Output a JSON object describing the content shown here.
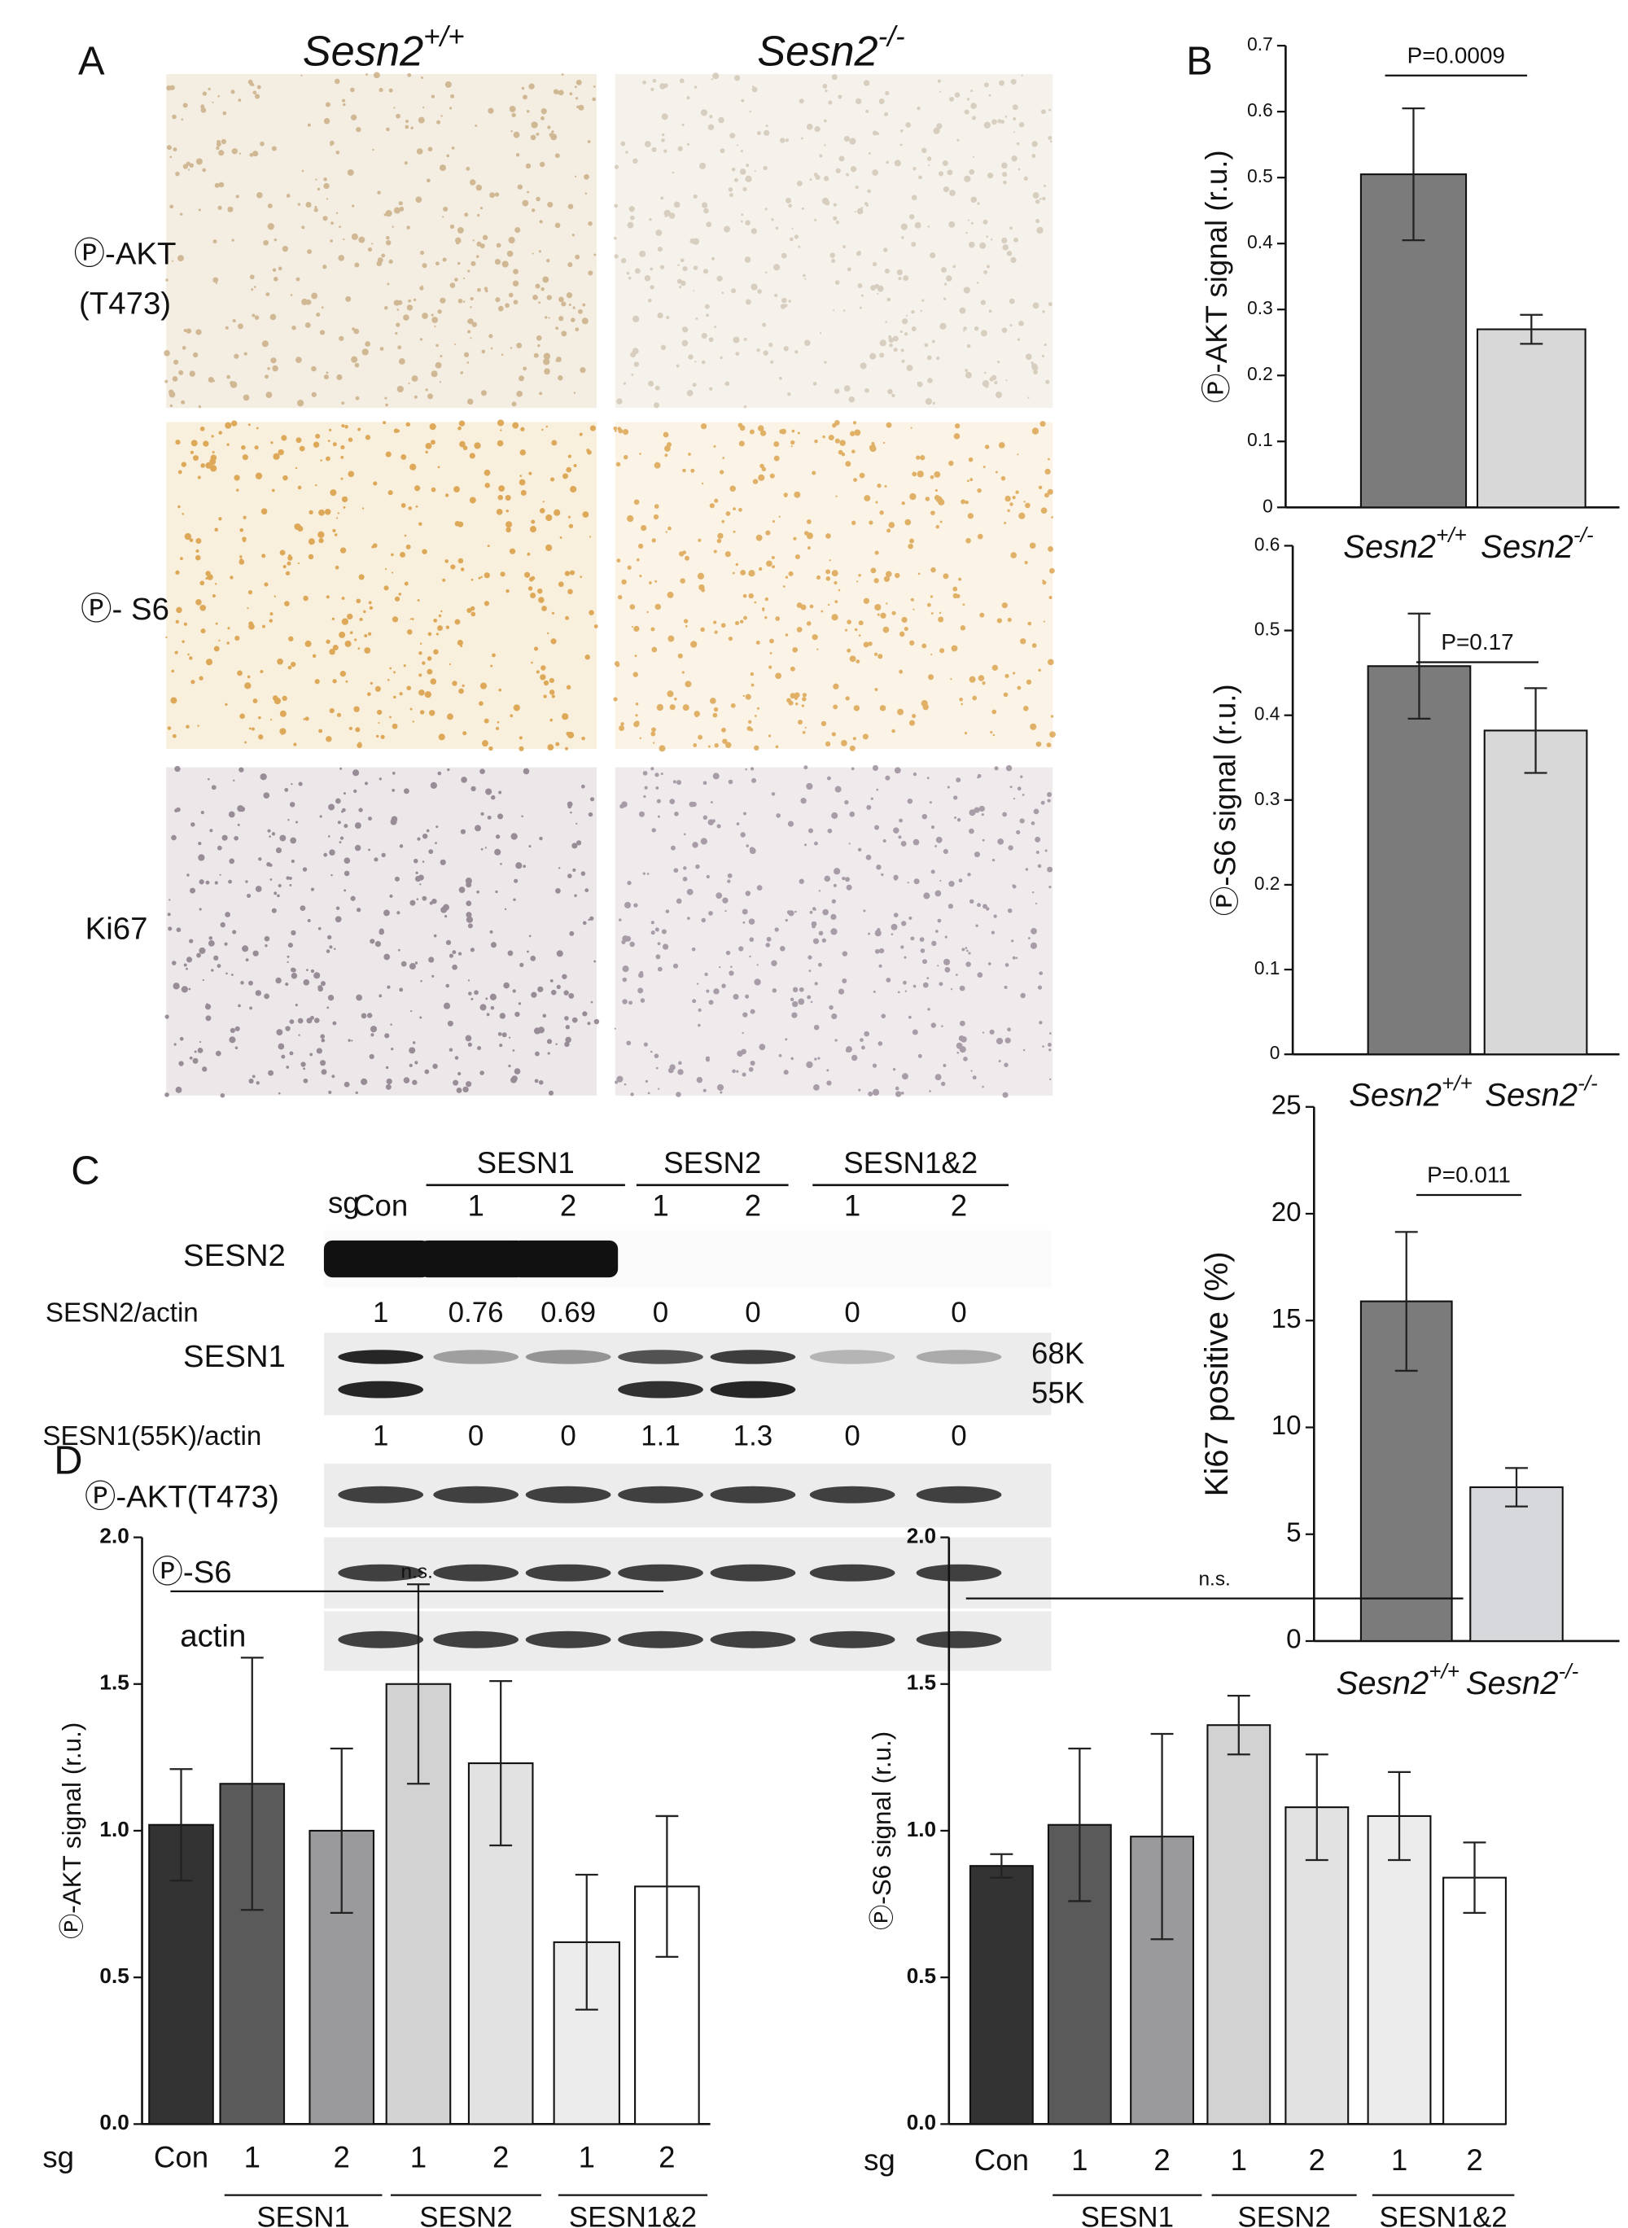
{
  "panel_a": {
    "label": "A",
    "columns": [
      {
        "gene": "Sesn2",
        "genotype": "+/+"
      },
      {
        "gene": "Sesn2",
        "genotype": "-/-"
      }
    ],
    "rows": [
      [
        "Ⓟ-AKT",
        "(T473)"
      ],
      [
        "Ⓟ- S6"
      ],
      [
        "Ki67"
      ]
    ]
  },
  "panel_b": {
    "label": "B"
  },
  "panel_c": {
    "label": "C",
    "sg": "sg",
    "con": "Con",
    "groups": [
      "SESN1",
      "SESN2",
      "SESN1&2"
    ],
    "lanes": [
      "1",
      "2",
      "1",
      "2",
      "1",
      "2"
    ],
    "blots": [
      "SESN2",
      "SESN1",
      "Ⓟ-AKT(T473)",
      "Ⓟ-S6",
      "actin"
    ],
    "sizes": [
      "68K",
      "55K"
    ],
    "ratios": [
      {
        "label": "SESN2/actin",
        "values": [
          1,
          0.76,
          0.69,
          0,
          0,
          0,
          0
        ]
      },
      {
        "label": "SESN1(55K)/actin",
        "values": [
          1,
          0,
          0,
          1.1,
          1.3,
          0,
          0
        ]
      }
    ]
  },
  "panel_d": {
    "label": "D"
  },
  "chart_data": [
    {
      "type": "bar",
      "ylabel": "Ⓟ-AKT signal (r.u.)",
      "categories": [
        {
          "gene": "Sesn2",
          "sup": "+/+"
        },
        {
          "gene": "Sesn2",
          "sup": "-/-"
        }
      ],
      "values": [
        0.505,
        0.27
      ],
      "errors": [
        0.1,
        0.022
      ],
      "colors": [
        "#7b7b7b",
        "#d8d8d8"
      ],
      "ylim": [
        0,
        0.7
      ],
      "yticks": [
        0,
        0.1,
        0.2,
        0.3,
        0.4,
        0.5,
        0.6,
        0.7
      ],
      "annotation": "P=0.0009"
    },
    {
      "type": "bar",
      "ylabel": "Ⓟ-S6 signal (r.u.)",
      "categories": [
        {
          "gene": "Sesn2",
          "sup": "+/+"
        },
        {
          "gene": "Sesn2",
          "sup": "-/-"
        }
      ],
      "values": [
        0.458,
        0.382
      ],
      "errors": [
        0.062,
        0.05
      ],
      "colors": [
        "#7b7b7b",
        "#d8d8d8"
      ],
      "ylim": [
        0,
        0.6
      ],
      "yticks": [
        0,
        0.1,
        0.2,
        0.3,
        0.4,
        0.5,
        0.6
      ],
      "annotation": "P=0.17"
    },
    {
      "type": "bar",
      "ylabel": "Ki67 positive (%)",
      "categories": [
        {
          "gene": "Sesn2",
          "sup": "+/+"
        },
        {
          "gene": "Sesn2",
          "sup": "-/-"
        }
      ],
      "values": [
        15.9,
        7.2
      ],
      "errors": [
        3.25,
        0.9
      ],
      "colors": [
        "#7b7b7b",
        "#d6d8dc"
      ],
      "ylim": [
        0,
        25
      ],
      "yticks": [
        0,
        5,
        10,
        15,
        20,
        25
      ],
      "annotation": "P=0.011"
    },
    {
      "type": "bar",
      "ylabel": "Ⓟ-AKT signal (r.u.)",
      "xprefix": "sg",
      "categories": [
        "Con",
        "1",
        "2",
        "1",
        "2",
        "1",
        "2"
      ],
      "groups": [
        "SESN1",
        "SESN2",
        "SESN1&2"
      ],
      "values": [
        1.02,
        1.16,
        1.0,
        1.5,
        1.23,
        0.62,
        0.81
      ],
      "errors": [
        0.19,
        0.43,
        0.28,
        0.34,
        0.28,
        0.23,
        0.24
      ],
      "colors": [
        "#333333",
        "#5a5a5a",
        "#9a9a9c",
        "#d2d2d2",
        "#e2e2e2",
        "#ececec",
        "#ffffff"
      ],
      "ylim": [
        0,
        2
      ],
      "yticks": [
        {
          "value": 0,
          "label": "0.0"
        },
        {
          "value": 0.5,
          "label": "0.5"
        },
        {
          "value": 1,
          "label": "1.0"
        },
        {
          "value": 1.5,
          "label": "1.5"
        },
        {
          "value": 2,
          "label": "2.0"
        }
      ],
      "annotation": "n.s."
    },
    {
      "type": "bar",
      "ylabel": "Ⓟ-S6 signal (r.u.)",
      "xprefix": "sg",
      "categories": [
        "Con",
        "1",
        "2",
        "1",
        "2",
        "1",
        "2"
      ],
      "groups": [
        "SESN1",
        "SESN2",
        "SESN1&2"
      ],
      "values": [
        0.88,
        1.02,
        0.98,
        1.36,
        1.08,
        1.05,
        0.84
      ],
      "errors": [
        0.04,
        0.26,
        0.35,
        0.1,
        0.18,
        0.15,
        0.12
      ],
      "colors": [
        "#333333",
        "#5a5a5a",
        "#9a9a9c",
        "#d2d2d2",
        "#e2e2e2",
        "#ececec",
        "#ffffff"
      ],
      "ylim": [
        0,
        2
      ],
      "yticks": [
        {
          "value": 0,
          "label": "0.0"
        },
        {
          "value": 0.5,
          "label": "0.5"
        },
        {
          "value": 1,
          "label": "1.0"
        },
        {
          "value": 1.5,
          "label": "1.5"
        },
        {
          "value": 2,
          "label": "2.0"
        }
      ],
      "annotation": "n.s."
    }
  ]
}
